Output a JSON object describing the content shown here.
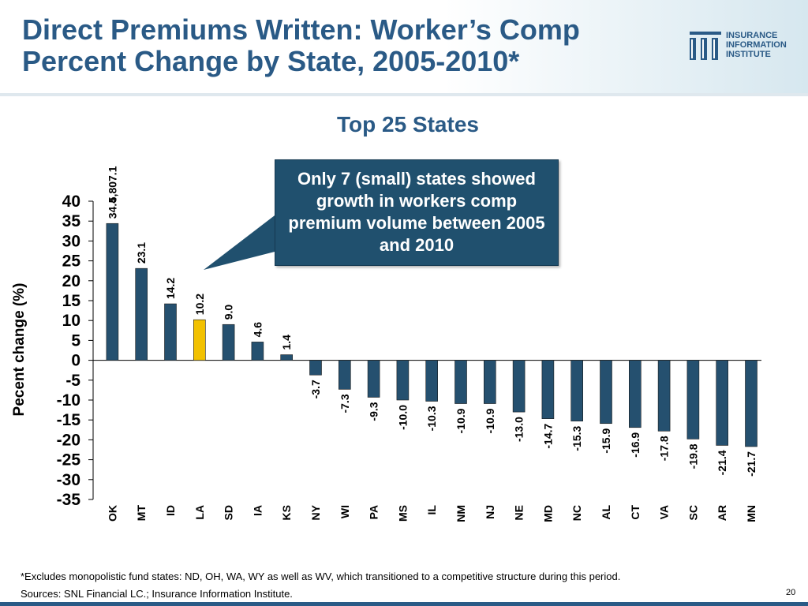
{
  "header": {
    "title_line1": "Direct Premiums Written: Worker’s Comp",
    "title_line2": "Percent Change by State, 2005-2010*",
    "logo_line1": "INSURANCE",
    "logo_line2": "INFORMATION",
    "logo_line3": "INSTITUTE"
  },
  "chart_data": {
    "type": "bar",
    "title": "Top 25 States",
    "ylabel": "Pecent change (%)",
    "ylim": [
      -35,
      40
    ],
    "ytick_step": 5,
    "categories": [
      "OK",
      "MT",
      "ID",
      "LA",
      "SD",
      "IA",
      "KS",
      "NY",
      "WI",
      "PA",
      "MS",
      "IL",
      "NM",
      "NJ",
      "NE",
      "MD",
      "NC",
      "AL",
      "CT",
      "VA",
      "SC",
      "AR",
      "MN"
    ],
    "values": [
      34.4,
      23.1,
      14.2,
      10.2,
      9.0,
      4.6,
      1.4,
      -3.7,
      -7.3,
      -9.3,
      -10.0,
      -10.3,
      -10.9,
      -10.9,
      -13.0,
      -14.7,
      -15.3,
      -15.9,
      -16.9,
      -17.8,
      -19.8,
      -21.4,
      -21.7
    ],
    "value_labels": [
      "34.4",
      "23.1",
      "14.2",
      "10.2",
      "9.0",
      "4.6",
      "1.4",
      "-3.7",
      "-7.3",
      "-9.3",
      "-10.0",
      "-10.3",
      "-10.9",
      "-10.9",
      "-13.0",
      "-14.7",
      "-15.3",
      "-15.9",
      "-16.9",
      "-17.8",
      "-19.8",
      "-21.4",
      "-21.7"
    ],
    "overflow_label": "5,807.1",
    "highlight_index": 3,
    "colors": {
      "bar": "#25506f",
      "highlight": "#f2c100"
    }
  },
  "callout": {
    "text": "Only 7 (small) states showed growth in workers comp premium volume between 2005 and 2010"
  },
  "footer": {
    "footnote": "*Excludes monopolistic fund states: ND, OH, WA, WY  as well as WV, which transitioned to a competitive structure during this period.",
    "sources": "Sources:  SNL Financial LC.; Insurance Information Institute.",
    "page_number": "20"
  }
}
